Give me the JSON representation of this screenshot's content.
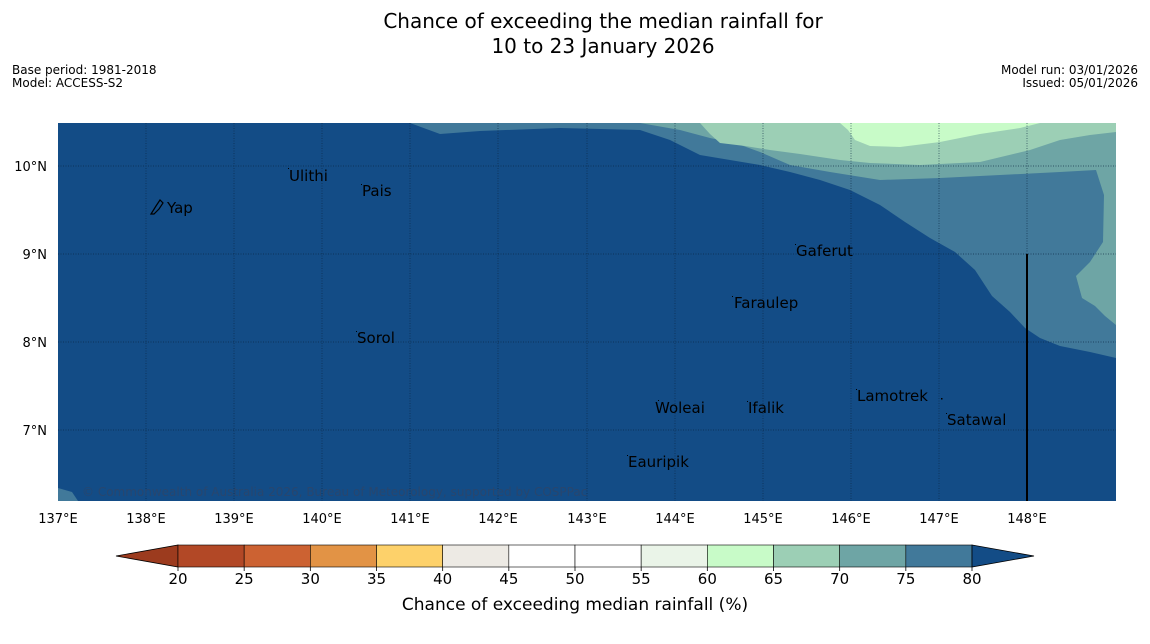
{
  "title": {
    "line1": "Chance of exceeding the median rainfall for",
    "line2": "10 to 23 January 2026"
  },
  "meta_left": {
    "base_period": "Base period: 1981-2018",
    "model": "Model: ACCESS-S2"
  },
  "meta_right": {
    "model_run": "Model run: 03/01/2026",
    "issued": "Issued: 05/01/2026"
  },
  "map": {
    "lon_labels": [
      "137°E",
      "138°E",
      "139°E",
      "140°E",
      "141°E",
      "142°E",
      "143°E",
      "144°E",
      "145°E",
      "146°E",
      "147°E",
      "148°E"
    ],
    "lat_labels": [
      "10°N",
      "9°N",
      "8°N",
      "7°N"
    ],
    "places": [
      {
        "name": "Ulithi"
      },
      {
        "name": "Pais"
      },
      {
        "name": "Yap"
      },
      {
        "name": "Gaferut"
      },
      {
        "name": "Faraulep"
      },
      {
        "name": "Sorol"
      },
      {
        "name": "Lamotrek"
      },
      {
        "name": "Woleai"
      },
      {
        "name": "Ifalik"
      },
      {
        "name": "Satawal"
      },
      {
        "name": "Eauripik"
      }
    ],
    "copyright": "© Commonwealth of Australia 2026, Bureau of Meteorology, supported by COSPPac"
  },
  "colorbar": {
    "title": "Chance of exceeding median rainfall (%)",
    "labels": [
      "20",
      "25",
      "30",
      "35",
      "40",
      "45",
      "50",
      "55",
      "60",
      "65",
      "70",
      "75",
      "80"
    ],
    "colors": [
      "#9c3b1e",
      "#b24826",
      "#cc6232",
      "#e29345",
      "#fdd16a",
      "#edeae4",
      "#ffffff",
      "#ffffff",
      "#eaf4e8",
      "#c8fbc8",
      "#9ccfb5",
      "#6ea5a5",
      "#41799a",
      "#134c86"
    ]
  },
  "colors": {
    "deep_blue": "#134c86",
    "blue_75": "#41799a",
    "teal_70": "#6ea5a5",
    "mint_65": "#9ccfb5",
    "light_green_60": "#c8fbc8"
  }
}
